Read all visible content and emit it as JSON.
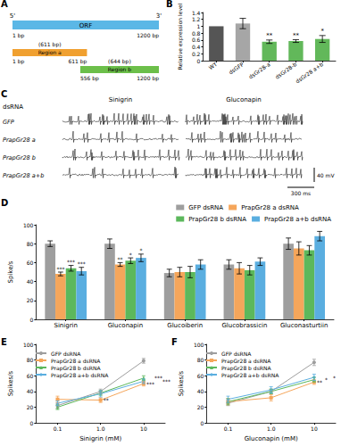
{
  "figure": {
    "A": {
      "label": "A",
      "ends": [
        "5'",
        "3'"
      ],
      "orf": {
        "text": "ORF",
        "start": 1,
        "end": 1200,
        "start_label": "1 bp",
        "end_label": "1200 bp",
        "color": "#5bb7e6"
      },
      "regions": [
        {
          "text": "Region a",
          "length_label": "(611 bp)",
          "start": 1,
          "end": 611,
          "start_label": "1 bp",
          "end_label": "611 bp",
          "color": "#f0a030"
        },
        {
          "text": "Region b",
          "length_label": "(644 bp)",
          "start": 556,
          "end": 1200,
          "start_label": "556 bp",
          "end_label": "1200 bp",
          "color": "#6cbf4a"
        }
      ]
    },
    "C": {
      "label": "C",
      "header": "dsRNA",
      "columns": [
        "Sinigrin",
        "Gluconapin"
      ],
      "rows": [
        "GFP",
        "PrapGr28 a",
        "PrapGr28 b",
        "PrapGr28 a+b"
      ],
      "scale_bar": {
        "y_label": "40 mV",
        "x_label": "300 ms"
      }
    }
  },
  "chart_data": [
    {
      "panel": "B",
      "type": "bar",
      "ylabel": "Relative expression level",
      "categories": [
        "WT",
        "dsGFP",
        "dsGr28-a",
        "dsGr28-b",
        "dsGr28 a+b"
      ],
      "values": [
        1.0,
        1.08,
        0.55,
        0.57,
        0.63
      ],
      "errors": [
        0,
        0.15,
        0.05,
        0.04,
        0.1
      ],
      "significance": [
        null,
        null,
        "**",
        "**",
        "*"
      ],
      "colors": [
        "#555555",
        "#a6a6a6",
        "#62b85a",
        "#62b85a",
        "#62b85a"
      ],
      "ylim": [
        0,
        1.4
      ],
      "yticks": [
        0,
        0.2,
        0.4,
        0.6,
        0.8,
        1.0,
        1.2,
        1.4
      ],
      "grid": false
    },
    {
      "panel": "D",
      "type": "bar",
      "ylabel": "Spike/s",
      "categories": [
        "Sinigrin",
        "Gluconapin",
        "Glucoiberin",
        "Glucobrassicin",
        "Gluconasturtiin"
      ],
      "series": [
        {
          "name": "GFP dsRNA",
          "color": "#9e9e9e",
          "values": [
            80,
            80,
            49,
            58,
            80
          ],
          "errors": [
            3,
            5,
            4,
            5,
            6
          ]
        },
        {
          "name": "PrapGr28 a dsRNA",
          "color": "#f5a65b",
          "values": [
            48,
            58,
            50,
            54,
            75
          ],
          "errors": [
            2,
            2,
            5,
            6,
            7
          ],
          "significance": [
            "***",
            "**",
            null,
            null,
            null
          ]
        },
        {
          "name": "PrapGr28 b dsRNA",
          "color": "#5cb85c",
          "values": [
            54,
            62,
            50,
            52,
            73
          ],
          "errors": [
            3,
            3,
            6,
            5,
            5
          ],
          "significance": [
            "***",
            "*",
            null,
            null,
            null
          ]
        },
        {
          "name": "PrapGr28 a+b dsRNA",
          "color": "#5aaee0",
          "values": [
            51,
            65,
            58,
            61,
            88
          ],
          "errors": [
            4,
            4,
            5,
            4,
            5
          ],
          "significance": [
            "***",
            "*",
            null,
            null,
            null
          ]
        }
      ],
      "ylim": [
        0,
        100
      ],
      "yticks": [
        0,
        20,
        40,
        60,
        80,
        100
      ],
      "legend": "top-right",
      "grid": false
    },
    {
      "panel": "E",
      "type": "line",
      "xlabel": "Sinigrin (mM)",
      "ylabel": "Spikes/s",
      "categories": [
        "0.1",
        "1.0",
        "10"
      ],
      "series": [
        {
          "name": "GFP dsRNA",
          "color": "#9e9e9e",
          "marker": "circle",
          "values": [
            22,
            40,
            79
          ],
          "errors": [
            3,
            3,
            3
          ]
        },
        {
          "name": "PrapGr28 a dsRNA",
          "color": "#f5a65b",
          "marker": "square",
          "values": [
            30,
            29,
            50
          ],
          "errors": [
            4,
            3,
            3
          ],
          "significance": [
            null,
            "**",
            "***"
          ]
        },
        {
          "name": "PrapGr28 b dsRNA",
          "color": "#5cb85c",
          "marker": "triangle",
          "values": [
            20,
            38,
            57
          ],
          "errors": [
            3,
            3,
            3
          ],
          "significance": [
            null,
            null,
            "***"
          ]
        },
        {
          "name": "PrapGr28 a+b dsRNA",
          "color": "#5aaee0",
          "marker": "diamond",
          "values": [
            25,
            37,
            53
          ],
          "errors": [
            3,
            4,
            3
          ],
          "significance": [
            null,
            null,
            "***"
          ]
        }
      ],
      "ylim": [
        0,
        100
      ],
      "yticks": [
        0,
        20,
        40,
        60,
        80,
        100
      ],
      "legend": "top-left",
      "grid": false
    },
    {
      "panel": "F",
      "type": "line",
      "xlabel": "Gluconapin (mM)",
      "ylabel": "Spikes/s",
      "categories": [
        "0.1",
        "1.0",
        "10"
      ],
      "series": [
        {
          "name": "GFP dsRNA",
          "color": "#9e9e9e",
          "marker": "circle",
          "values": [
            25,
            40,
            77
          ],
          "errors": [
            3,
            3,
            4
          ]
        },
        {
          "name": "PrapGr28 a dsRNA",
          "color": "#f5a65b",
          "marker": "square",
          "values": [
            27,
            32,
            52
          ],
          "errors": [
            4,
            4,
            3
          ],
          "significance": [
            null,
            null,
            "**"
          ]
        },
        {
          "name": "PrapGr28 b dsRNA",
          "color": "#5cb85c",
          "marker": "triangle",
          "values": [
            27,
            40,
            55
          ],
          "errors": [
            4,
            3,
            3
          ],
          "significance": [
            null,
            null,
            "*"
          ]
        },
        {
          "name": "PrapGr28 a+b dsRNA",
          "color": "#5aaee0",
          "marker": "diamond",
          "values": [
            30,
            42,
            58
          ],
          "errors": [
            4,
            4,
            4
          ],
          "significance": [
            null,
            null,
            "*"
          ]
        }
      ],
      "ylim": [
        0,
        100
      ],
      "yticks": [
        0,
        20,
        40,
        60,
        80,
        100
      ],
      "legend": "top-left",
      "grid": false
    }
  ]
}
